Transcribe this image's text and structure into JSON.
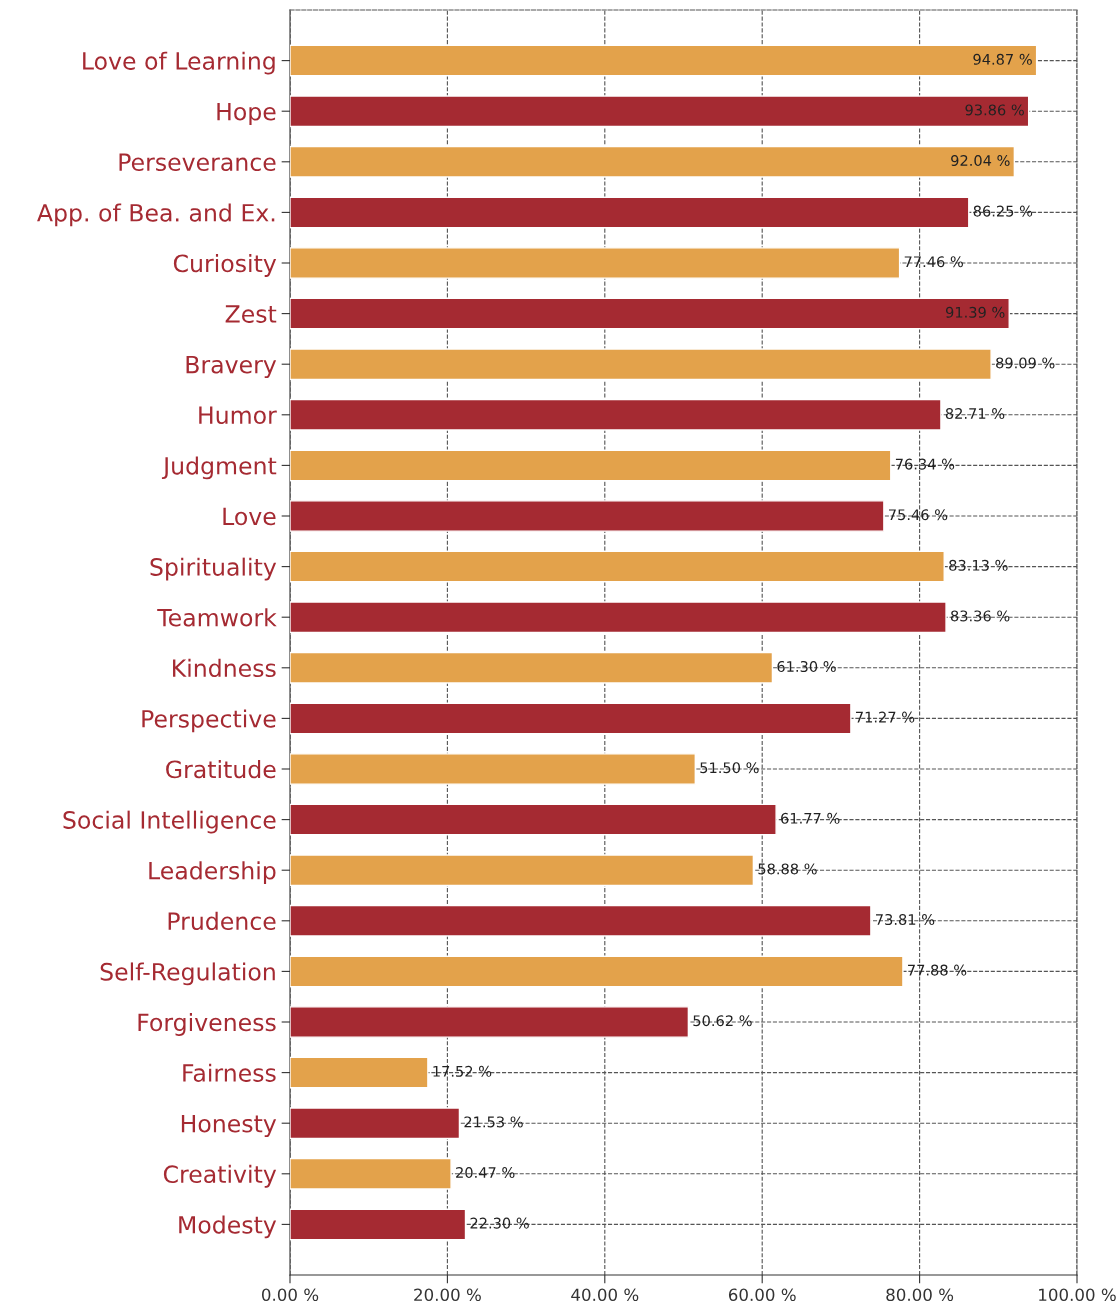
{
  "chart_data": {
    "type": "bar",
    "orientation": "horizontal",
    "categories": [
      "Love of Learning",
      "Hope",
      "Perseverance",
      "App. of Bea. and Ex.",
      "Curiosity",
      "Zest",
      "Bravery",
      "Humor",
      "Judgment",
      "Love",
      "Spirituality",
      "Teamwork",
      "Kindness",
      "Perspective",
      "Gratitude",
      "Social Intelligence",
      "Leadership",
      "Prudence",
      "Self-Regulation",
      "Forgiveness",
      "Fairness",
      "Honesty",
      "Creativity",
      "Modesty"
    ],
    "values": [
      94.87,
      93.86,
      92.04,
      86.25,
      77.46,
      91.39,
      89.09,
      82.71,
      76.34,
      75.46,
      83.13,
      83.36,
      61.3,
      71.27,
      51.5,
      61.77,
      58.88,
      73.81,
      77.88,
      50.62,
      17.52,
      21.53,
      20.47,
      22.3
    ],
    "value_labels": [
      "94.87 %",
      "93.86 %",
      "92.04 %",
      "86.25 %",
      "77.46 %",
      "91.39 %",
      "89.09 %",
      "82.71 %",
      "76.34 %",
      "75.46 %",
      "83.13 %",
      "83.36 %",
      "61.30 %",
      "71.27 %",
      "51.50 %",
      "61.77 %",
      "58.88 %",
      "73.81 %",
      "77.88 %",
      "50.62 %",
      "17.52 %",
      "21.53 %",
      "20.47 %",
      "22.30 %"
    ],
    "colors": [
      "#e3a24b",
      "#a52a32",
      "#e3a24b",
      "#a52a32",
      "#e3a24b",
      "#a52a32",
      "#e3a24b",
      "#a52a32",
      "#e3a24b",
      "#a52a32",
      "#e3a24b",
      "#a52a32",
      "#e3a24b",
      "#a52a32",
      "#e3a24b",
      "#a52a32",
      "#e3a24b",
      "#a52a32",
      "#e3a24b",
      "#a52a32",
      "#e3a24b",
      "#a52a32",
      "#e3a24b",
      "#a52a32"
    ],
    "xlim": [
      0,
      100
    ],
    "xticks": [
      {
        "value": 0,
        "label": "0.00 %"
      },
      {
        "value": 20,
        "label": "20.00 %"
      },
      {
        "value": 40,
        "label": "40.00 %"
      },
      {
        "value": 60,
        "label": "60.00 %"
      },
      {
        "value": 80,
        "label": "80.00 %"
      },
      {
        "value": 100,
        "label": "100.00 %"
      }
    ],
    "grid": true
  }
}
